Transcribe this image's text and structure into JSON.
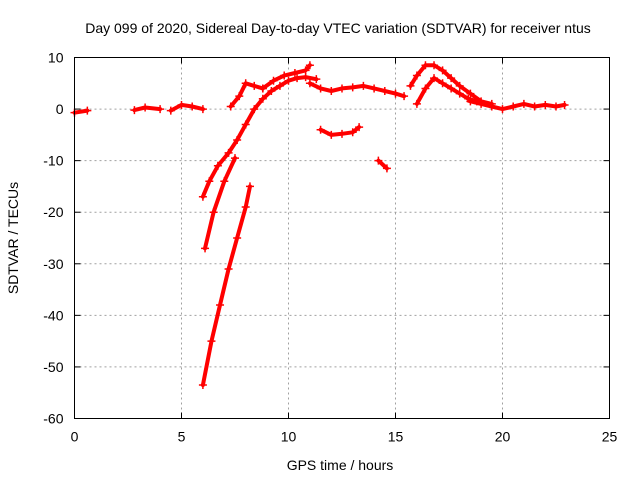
{
  "chart_data": {
    "type": "scatter",
    "title": "Day 099 of 2020, Sidereal Day-to-day VTEC variation (SDTVAR) for receiver ntus",
    "xlabel": "GPS time / hours",
    "ylabel": "SDTVAR / TECUs",
    "xlim": [
      0,
      25
    ],
    "ylim": [
      -60,
      10
    ],
    "xticks": [
      0,
      5,
      10,
      15,
      20,
      25
    ],
    "xtick_labels": [
      "0",
      "5",
      "10",
      "15",
      "20",
      "25"
    ],
    "yticks": [
      10,
      0,
      -10,
      -20,
      -30,
      -40,
      -50,
      -60
    ],
    "ytick_labels": [
      "10",
      "0",
      "-10",
      "-20",
      "-30",
      "-40",
      "-50",
      "-60"
    ],
    "grid": true,
    "color": "#ff0000",
    "series": [
      {
        "name": "arc-1",
        "x": [
          0.0,
          0.6
        ],
        "y": [
          -0.7,
          -0.3
        ]
      },
      {
        "name": "arc-2",
        "x": [
          2.8,
          3.3,
          4.0
        ],
        "y": [
          -0.2,
          0.3,
          0.0
        ]
      },
      {
        "name": "arc-3",
        "x": [
          4.5,
          5.0,
          5.5,
          6.0
        ],
        "y": [
          -0.3,
          0.8,
          0.5,
          0.0
        ]
      },
      {
        "name": "arc-4",
        "x": [
          6.0,
          6.3,
          6.7,
          7.2,
          7.6,
          8.0,
          8.4,
          8.8,
          9.2,
          9.6,
          10.0,
          10.4,
          10.8,
          11.3
        ],
        "y": [
          -17.0,
          -14.0,
          -11.0,
          -8.5,
          -6.0,
          -3.0,
          0.0,
          2.0,
          3.5,
          4.5,
          5.5,
          6.0,
          6.2,
          5.8
        ]
      },
      {
        "name": "arc-5",
        "x": [
          6.1,
          6.5,
          7.0,
          7.5
        ],
        "y": [
          -27.0,
          -20.0,
          -14.0,
          -9.5
        ]
      },
      {
        "name": "arc-6",
        "x": [
          6.0,
          6.4,
          6.8,
          7.2,
          7.6,
          8.0,
          8.2
        ],
        "y": [
          -53.5,
          -45.0,
          -38.0,
          -31.0,
          -25.0,
          -19.0,
          -15.0
        ]
      },
      {
        "name": "arc-7",
        "x": [
          7.3,
          7.7,
          8.0,
          8.4,
          8.8
        ],
        "y": [
          0.5,
          2.5,
          5.0,
          4.5,
          4.0
        ]
      },
      {
        "name": "arc-8",
        "x": [
          8.8,
          9.3,
          9.8,
          10.3,
          10.8,
          11.0
        ],
        "y": [
          4.0,
          5.5,
          6.5,
          7.0,
          7.5,
          8.5
        ]
      },
      {
        "name": "arc-9",
        "x": [
          11.0,
          11.5,
          12.0,
          12.5,
          13.0,
          13.5,
          14.0,
          14.5,
          15.0,
          15.4
        ],
        "y": [
          5.0,
          4.0,
          3.5,
          4.0,
          4.2,
          4.5,
          4.0,
          3.5,
          3.0,
          2.5
        ]
      },
      {
        "name": "arc-10",
        "x": [
          11.5,
          12.0,
          12.5,
          13.0,
          13.3
        ],
        "y": [
          -4.0,
          -5.0,
          -4.8,
          -4.5,
          -3.5
        ]
      },
      {
        "name": "arc-11",
        "x": [
          14.2,
          14.6
        ],
        "y": [
          -10.0,
          -11.5
        ]
      },
      {
        "name": "arc-12",
        "x": [
          15.7,
          16.0,
          16.4,
          16.8,
          17.2,
          17.6,
          18.0,
          18.5,
          19.0,
          19.5
        ],
        "y": [
          4.5,
          6.5,
          8.5,
          8.5,
          7.5,
          6.0,
          4.5,
          3.0,
          1.5,
          1.0
        ]
      },
      {
        "name": "arc-13",
        "x": [
          16.0,
          16.4,
          16.8,
          17.2,
          17.6,
          18.0,
          18.4,
          18.8
        ],
        "y": [
          1.0,
          4.0,
          6.0,
          5.0,
          4.0,
          3.0,
          2.0,
          1.5
        ]
      },
      {
        "name": "arc-14",
        "x": [
          18.5,
          19.0,
          19.5,
          20.0,
          20.5,
          21.0,
          21.5,
          22.0,
          22.5,
          22.9
        ],
        "y": [
          1.5,
          1.0,
          0.5,
          0.0,
          0.5,
          1.0,
          0.5,
          0.8,
          0.5,
          0.8
        ]
      }
    ]
  }
}
